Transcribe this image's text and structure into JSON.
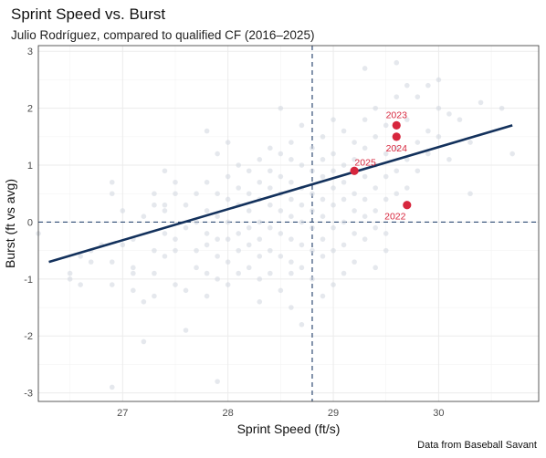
{
  "chart_data": {
    "type": "scatter",
    "title": "Sprint Speed vs. Burst",
    "subtitle": "Julio Rodríguez, compared to qualified CF (2016–2025)",
    "caption": "Data from Baseball Savant",
    "xlabel": "Sprint Speed (ft/s)",
    "ylabel": "Burst (ft vs avg)",
    "xlim": [
      26.2,
      30.95
    ],
    "ylim": [
      -3.15,
      3.1
    ],
    "x_ticks": [
      27,
      28,
      29,
      30
    ],
    "y_ticks": [
      -3,
      -2,
      -1,
      0,
      1,
      2,
      3
    ],
    "reference_lines": {
      "x": 28.8,
      "y": 0
    },
    "trend_line": {
      "x": [
        26.3,
        30.7
      ],
      "y": [
        -0.7,
        1.7
      ]
    },
    "colors": {
      "background_points": "#cfd6df",
      "highlight": "#d7263d",
      "trend": "#13315c",
      "reference": "#2f4b73"
    },
    "background_points": [
      [
        26.2,
        -0.2
      ],
      [
        26.5,
        -0.9
      ],
      [
        26.5,
        -1.0
      ],
      [
        26.6,
        -1.1
      ],
      [
        26.6,
        -0.6
      ],
      [
        26.7,
        -0.7
      ],
      [
        26.7,
        -0.5
      ],
      [
        26.8,
        -0.4
      ],
      [
        26.9,
        -0.7
      ],
      [
        26.9,
        0.7
      ],
      [
        26.9,
        -1.1
      ],
      [
        26.9,
        -2.9
      ],
      [
        26.9,
        0.5
      ],
      [
        27.0,
        -0.4
      ],
      [
        27.0,
        0.2
      ],
      [
        27.1,
        -0.3
      ],
      [
        27.1,
        -0.8
      ],
      [
        27.1,
        -0.9
      ],
      [
        27.1,
        -1.2
      ],
      [
        27.2,
        -1.4
      ],
      [
        27.2,
        0.1
      ],
      [
        27.2,
        -2.1
      ],
      [
        27.3,
        0.3
      ],
      [
        27.3,
        -0.5
      ],
      [
        27.3,
        -1.3
      ],
      [
        27.3,
        0.5
      ],
      [
        27.4,
        0.9
      ],
      [
        27.4,
        0.3
      ],
      [
        27.4,
        0.2
      ],
      [
        27.4,
        -0.2
      ],
      [
        27.4,
        -0.6
      ],
      [
        27.5,
        0.7
      ],
      [
        27.5,
        -0.3
      ],
      [
        27.5,
        -0.5
      ],
      [
        27.5,
        -1.1
      ],
      [
        27.6,
        0.3
      ],
      [
        27.6,
        -0.1
      ],
      [
        27.6,
        -1.2
      ],
      [
        27.6,
        -1.9
      ],
      [
        27.7,
        0.5
      ],
      [
        27.7,
        0.0
      ],
      [
        27.7,
        -0.5
      ],
      [
        27.7,
        -0.8
      ],
      [
        27.8,
        1.6
      ],
      [
        27.8,
        0.7
      ],
      [
        27.8,
        0.2
      ],
      [
        27.8,
        -0.2
      ],
      [
        27.8,
        -0.4
      ],
      [
        27.8,
        -0.9
      ],
      [
        27.8,
        -1.3
      ],
      [
        27.9,
        1.2
      ],
      [
        27.9,
        0.5
      ],
      [
        27.9,
        0.1
      ],
      [
        27.9,
        -0.3
      ],
      [
        27.9,
        -0.6
      ],
      [
        27.9,
        -1.0
      ],
      [
        27.9,
        -2.8
      ],
      [
        28.0,
        1.4
      ],
      [
        28.0,
        0.8
      ],
      [
        28.0,
        0.4
      ],
      [
        28.0,
        0.0
      ],
      [
        28.0,
        -0.3
      ],
      [
        28.0,
        -0.7
      ],
      [
        28.0,
        -1.1
      ],
      [
        28.1,
        1.0
      ],
      [
        28.1,
        0.6
      ],
      [
        28.1,
        0.3
      ],
      [
        28.1,
        -0.2
      ],
      [
        28.1,
        -0.5
      ],
      [
        28.1,
        -0.9
      ],
      [
        28.2,
        0.9
      ],
      [
        28.2,
        0.5
      ],
      [
        28.2,
        0.2
      ],
      [
        28.2,
        -0.1
      ],
      [
        28.2,
        -0.4
      ],
      [
        28.2,
        -0.8
      ],
      [
        28.3,
        1.1
      ],
      [
        28.3,
        0.7
      ],
      [
        28.3,
        0.4
      ],
      [
        28.3,
        0.0
      ],
      [
        28.3,
        -0.3
      ],
      [
        28.3,
        -0.6
      ],
      [
        28.3,
        -1.0
      ],
      [
        28.3,
        -1.4
      ],
      [
        28.4,
        1.3
      ],
      [
        28.4,
        0.9
      ],
      [
        28.4,
        0.6
      ],
      [
        28.4,
        0.3
      ],
      [
        28.4,
        -0.1
      ],
      [
        28.4,
        -0.5
      ],
      [
        28.4,
        -0.9
      ],
      [
        28.5,
        2.0
      ],
      [
        28.5,
        1.2
      ],
      [
        28.5,
        0.8
      ],
      [
        28.5,
        0.5
      ],
      [
        28.5,
        0.2
      ],
      [
        28.5,
        -0.2
      ],
      [
        28.5,
        -0.6
      ],
      [
        28.5,
        -1.2
      ],
      [
        28.6,
        1.4
      ],
      [
        28.6,
        1.1
      ],
      [
        28.6,
        0.7
      ],
      [
        28.6,
        0.4
      ],
      [
        28.6,
        0.1
      ],
      [
        28.6,
        -0.3
      ],
      [
        28.6,
        -0.7
      ],
      [
        28.6,
        -1.5
      ],
      [
        28.7,
        1.7
      ],
      [
        28.7,
        1.0
      ],
      [
        28.7,
        0.6
      ],
      [
        28.7,
        0.3
      ],
      [
        28.7,
        0.0
      ],
      [
        28.7,
        -0.4
      ],
      [
        28.7,
        -0.8
      ],
      [
        28.7,
        -1.8
      ],
      [
        28.8,
        1.3
      ],
      [
        28.8,
        0.9
      ],
      [
        28.8,
        0.5
      ],
      [
        28.8,
        0.2
      ],
      [
        28.8,
        -0.1
      ],
      [
        28.8,
        -0.5
      ],
      [
        28.8,
        -1.0
      ],
      [
        28.9,
        1.5
      ],
      [
        28.9,
        1.1
      ],
      [
        28.9,
        0.8
      ],
      [
        28.9,
        0.4
      ],
      [
        28.9,
        0.1
      ],
      [
        28.9,
        -0.3
      ],
      [
        28.9,
        -0.6
      ],
      [
        28.9,
        -1.3
      ],
      [
        29.0,
        1.8
      ],
      [
        29.0,
        1.2
      ],
      [
        29.0,
        0.9
      ],
      [
        29.0,
        0.6
      ],
      [
        29.0,
        0.3
      ],
      [
        29.0,
        -0.1
      ],
      [
        29.0,
        -0.5
      ],
      [
        29.0,
        -1.1
      ],
      [
        29.1,
        1.6
      ],
      [
        29.1,
        1.0
      ],
      [
        29.1,
        0.7
      ],
      [
        29.1,
        0.4
      ],
      [
        29.1,
        0.0
      ],
      [
        29.1,
        -0.4
      ],
      [
        29.1,
        -0.9
      ],
      [
        29.2,
        1.4
      ],
      [
        29.2,
        1.1
      ],
      [
        29.2,
        0.5
      ],
      [
        29.2,
        0.2
      ],
      [
        29.2,
        -0.2
      ],
      [
        29.2,
        -0.7
      ],
      [
        29.3,
        2.7
      ],
      [
        29.3,
        1.8
      ],
      [
        29.3,
        1.3
      ],
      [
        29.3,
        0.8
      ],
      [
        29.3,
        0.4
      ],
      [
        29.3,
        0.1
      ],
      [
        29.3,
        -0.3
      ],
      [
        29.4,
        2.0
      ],
      [
        29.4,
        1.5
      ],
      [
        29.4,
        1.0
      ],
      [
        29.4,
        0.6
      ],
      [
        29.4,
        0.2
      ],
      [
        29.4,
        -0.1
      ],
      [
        29.4,
        -0.8
      ],
      [
        29.5,
        1.7
      ],
      [
        29.5,
        1.2
      ],
      [
        29.5,
        0.8
      ],
      [
        29.5,
        0.4
      ],
      [
        29.5,
        -0.2
      ],
      [
        29.6,
        2.8
      ],
      [
        29.6,
        2.2
      ],
      [
        29.6,
        1.3
      ],
      [
        29.6,
        0.9
      ],
      [
        29.6,
        0.5
      ],
      [
        29.7,
        2.4
      ],
      [
        29.7,
        1.8
      ],
      [
        29.7,
        1.1
      ],
      [
        29.7,
        0.6
      ],
      [
        29.8,
        2.2
      ],
      [
        29.8,
        1.4
      ],
      [
        29.8,
        0.9
      ],
      [
        29.9,
        2.4
      ],
      [
        29.9,
        1.6
      ],
      [
        29.9,
        1.2
      ],
      [
        30.0,
        2.5
      ],
      [
        30.0,
        2.0
      ],
      [
        30.0,
        1.5
      ],
      [
        30.1,
        1.9
      ],
      [
        30.1,
        1.1
      ],
      [
        30.2,
        1.8
      ],
      [
        30.3,
        1.4
      ],
      [
        30.4,
        2.1
      ],
      [
        30.6,
        2.0
      ],
      [
        30.7,
        1.2
      ],
      [
        30.3,
        0.5
      ],
      [
        27.5,
        0.5
      ],
      [
        28.6,
        -0.9
      ],
      [
        29.5,
        -0.5
      ],
      [
        27.3,
        -0.9
      ]
    ],
    "highlight_points": [
      {
        "label": "2023",
        "x": 29.6,
        "y": 1.7
      },
      {
        "label": "2024",
        "x": 29.6,
        "y": 1.5
      },
      {
        "label": "2025",
        "x": 29.2,
        "y": 0.9
      },
      {
        "label": "2022",
        "x": 29.7,
        "y": 0.3
      }
    ]
  }
}
